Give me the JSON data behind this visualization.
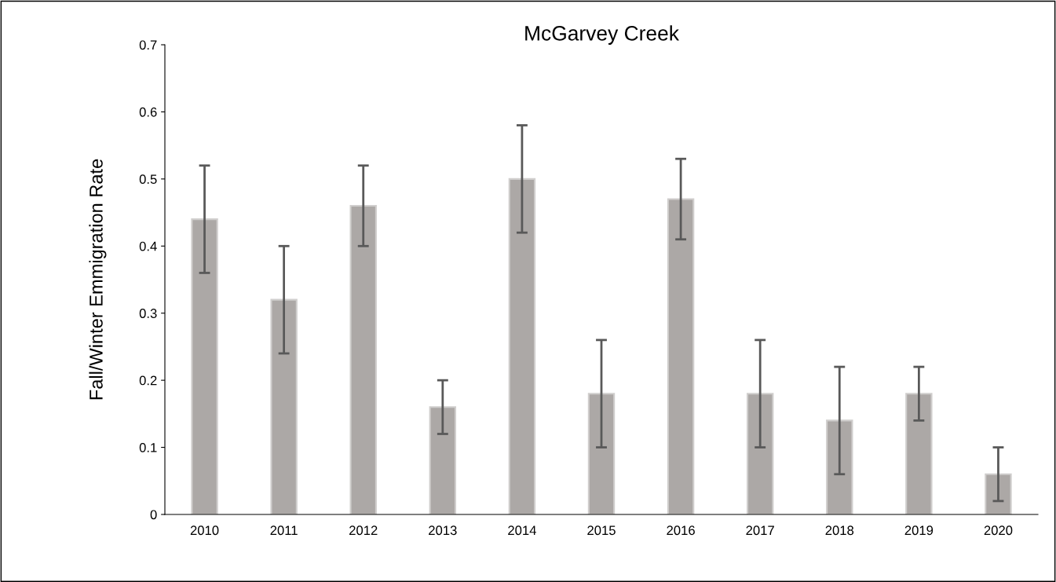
{
  "chart_data": {
    "type": "bar",
    "title": "McGarvey Creek",
    "ylabel": "Fall/Winter Emmigration Rate",
    "categories": [
      "2010",
      "2011",
      "2012",
      "2013",
      "2014",
      "2015",
      "2016",
      "2017",
      "2018",
      "2019",
      "2020"
    ],
    "values": [
      0.44,
      0.32,
      0.46,
      0.16,
      0.5,
      0.18,
      0.47,
      0.18,
      0.14,
      0.18,
      0.06
    ],
    "errors": [
      0.08,
      0.08,
      0.06,
      0.04,
      0.08,
      0.08,
      0.06,
      0.08,
      0.08,
      0.04,
      0.04
    ],
    "color": "#aca8a6",
    "ylim": [
      0,
      0.7
    ],
    "yticks": [
      {
        "value": 0,
        "label": "0"
      },
      0.1,
      0.2,
      0.3,
      0.4,
      0.5,
      0.6,
      0.7
    ],
    "grid": false,
    "legend": false
  }
}
